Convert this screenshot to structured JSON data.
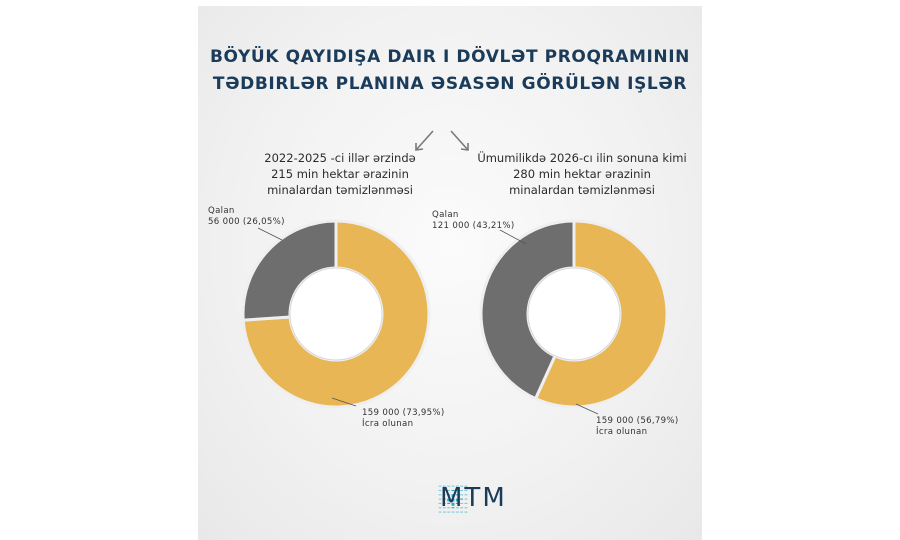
{
  "title": {
    "line1": "BÖYÜK QAYIDIŞA DAIR I DÖVLƏT PROQRAMININ",
    "line2": "TƏDBIRLƏR PLANINA ƏSASƏN GÖRÜLƏN IŞLƏR"
  },
  "left": {
    "heading": [
      "2022-2025 -ci illər ərzində",
      "215 min hektar ərazinin",
      "minalardan təmizlənməsi"
    ],
    "remaining_label": [
      "Qalan",
      "56 000 (26,05%)"
    ],
    "done_label": [
      "159 000 (73,95%)",
      "İcra olunan"
    ]
  },
  "right": {
    "heading": [
      "Ümumilikdə 2026-cı ilin sonuna kimi",
      "280 min hektar ərazinin",
      "minalardan təmizlənməsi"
    ],
    "remaining_label": [
      "Qalan",
      "121 000 (43,21%)"
    ],
    "done_label": [
      "159 000 (56,79%)",
      "İcra olunan"
    ]
  },
  "logo": {
    "text": "MTM"
  },
  "colors": {
    "title": "#1b3b5a",
    "done": "#e8b654",
    "remaining": "#6e6e6e",
    "gap": "#efefef"
  },
  "chart_data": [
    {
      "type": "pie",
      "title": "2022-2025 -ci illər ərzində 215 min hektar ərazinin minalardan təmizlənməsi",
      "categories": [
        "İcra olunan",
        "Qalan"
      ],
      "values": [
        159000,
        56000
      ],
      "percent": [
        73.95,
        26.05
      ]
    },
    {
      "type": "pie",
      "title": "Ümumilikdə 2026-cı ilin sonuna kimi 280 min hektar ərazinin minalardan təmizlənməsi",
      "categories": [
        "İcra olunan",
        "Qalan"
      ],
      "values": [
        159000,
        121000
      ],
      "percent": [
        56.79,
        43.21
      ]
    }
  ]
}
